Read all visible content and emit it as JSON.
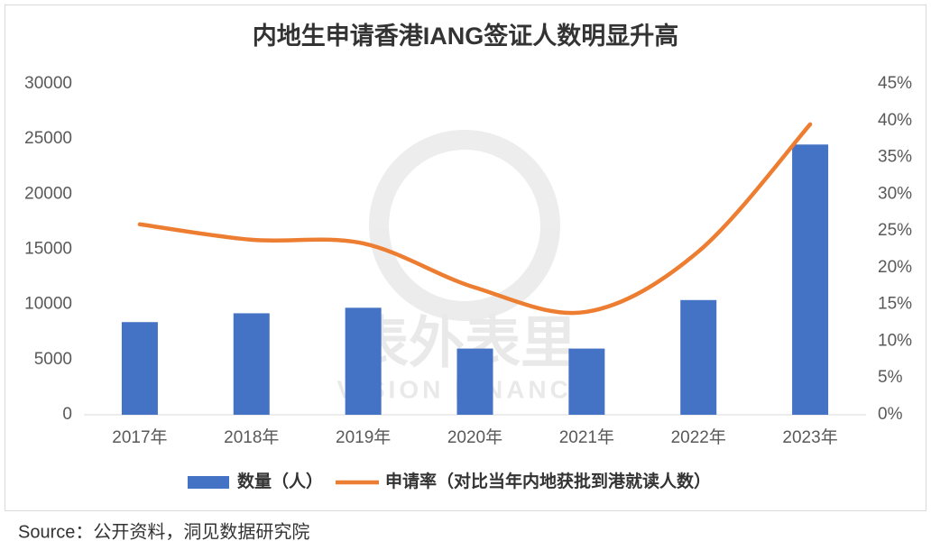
{
  "chart_data": {
    "type": "bar-line",
    "title": "内地生申请香港IANG签证人数明显升高",
    "categories": [
      "2017年",
      "2018年",
      "2019年",
      "2020年",
      "2021年",
      "2022年",
      "2023年"
    ],
    "series": [
      {
        "name": "数量（人）",
        "type": "bar",
        "color": "#4472c4",
        "values": [
          8400,
          9200,
          9700,
          6000,
          6000,
          10400,
          24500
        ]
      },
      {
        "name": "申请率（对比当年内地获批到港就读人数）",
        "type": "line",
        "axis": "y2",
        "color": "#ed7d31",
        "values": [
          25.9,
          23.8,
          23.3,
          17.3,
          14.0,
          22.2,
          39.5
        ]
      }
    ],
    "ylim": [
      0,
      30000
    ],
    "yticks": [
      0,
      5000,
      10000,
      15000,
      20000,
      25000,
      30000
    ],
    "y2lim": [
      0,
      45
    ],
    "y2ticks": [
      {
        "value": 0,
        "label": "0%"
      },
      {
        "value": 5,
        "label": "5%"
      },
      {
        "value": 10,
        "label": "10%"
      },
      {
        "value": 15,
        "label": "15%"
      },
      {
        "value": 20,
        "label": "20%"
      },
      {
        "value": 25,
        "label": "25%"
      },
      {
        "value": 30,
        "label": "30%"
      },
      {
        "value": 35,
        "label": "35%"
      },
      {
        "value": 40,
        "label": "40%"
      },
      {
        "value": 45,
        "label": "45%"
      }
    ],
    "grid": false,
    "legend": "bottom",
    "watermark": [
      "表外表里",
      "VISION FINANCE"
    ]
  },
  "source": "Source：公开资料，洞见数据研究院"
}
